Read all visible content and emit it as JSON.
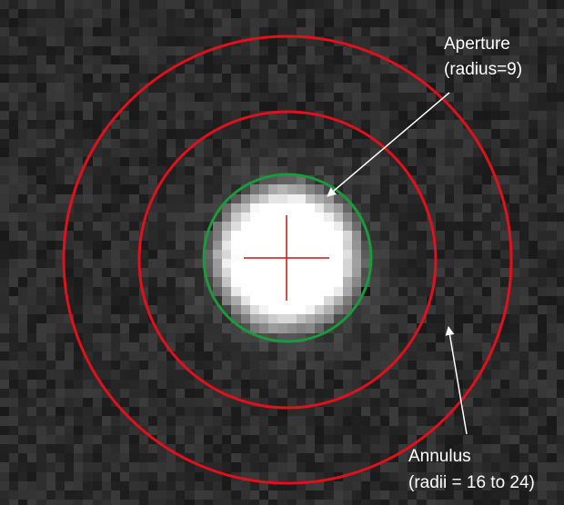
{
  "labels": {
    "aperture_title": "Aperture",
    "aperture_detail": "(radius=9)",
    "annulus_title": "Annulus",
    "annulus_detail": "(radii = 16 to 24)"
  },
  "photometry": {
    "aperture_radius_px": 9,
    "annulus_inner_radius_px": 16,
    "annulus_outer_radius_px": 24
  },
  "colors": {
    "aperture": "#1a9a3a",
    "annulus": "#e0101c",
    "crosshair": "#c81414",
    "arrow": "#ffffff",
    "text": "#ffffff"
  }
}
